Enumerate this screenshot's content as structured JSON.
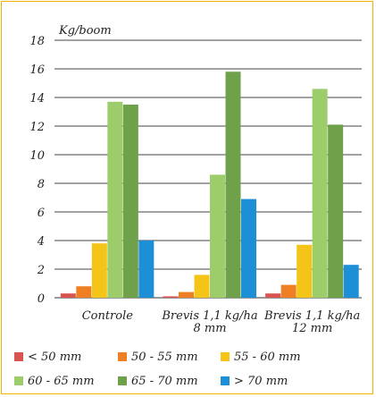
{
  "chart_data": {
    "type": "bar",
    "ylabel": "Kg/boom",
    "ylim": [
      0,
      18
    ],
    "yticks": [
      0,
      2,
      4,
      6,
      8,
      10,
      12,
      14,
      16,
      18
    ],
    "categories": [
      [
        "Controle"
      ],
      [
        "Brevis 1,1 kg/ha",
        "8 mm"
      ],
      [
        "Brevis 1,1 kg/ha",
        "12 mm"
      ]
    ],
    "series": [
      {
        "name": "< 50 mm",
        "color": "#d9534f",
        "values": [
          0.3,
          0.1,
          0.3
        ]
      },
      {
        "name": "50 - 55 mm",
        "color": "#ee7f22",
        "values": [
          0.8,
          0.4,
          0.9
        ]
      },
      {
        "name": "55 - 60 mm",
        "color": "#f5c418",
        "values": [
          3.8,
          1.6,
          3.7
        ]
      },
      {
        "name": "60 - 65 mm",
        "color": "#9dcd6a",
        "values": [
          13.7,
          8.6,
          14.6
        ]
      },
      {
        "name": "65 - 70 mm",
        "color": "#6fa04a",
        "values": [
          13.5,
          15.8,
          12.1
        ]
      },
      {
        "name": "> 70 mm",
        "color": "#1d8fd6",
        "values": [
          4.0,
          6.9,
          2.3
        ]
      }
    ],
    "grid": true,
    "legend": "bottom"
  }
}
